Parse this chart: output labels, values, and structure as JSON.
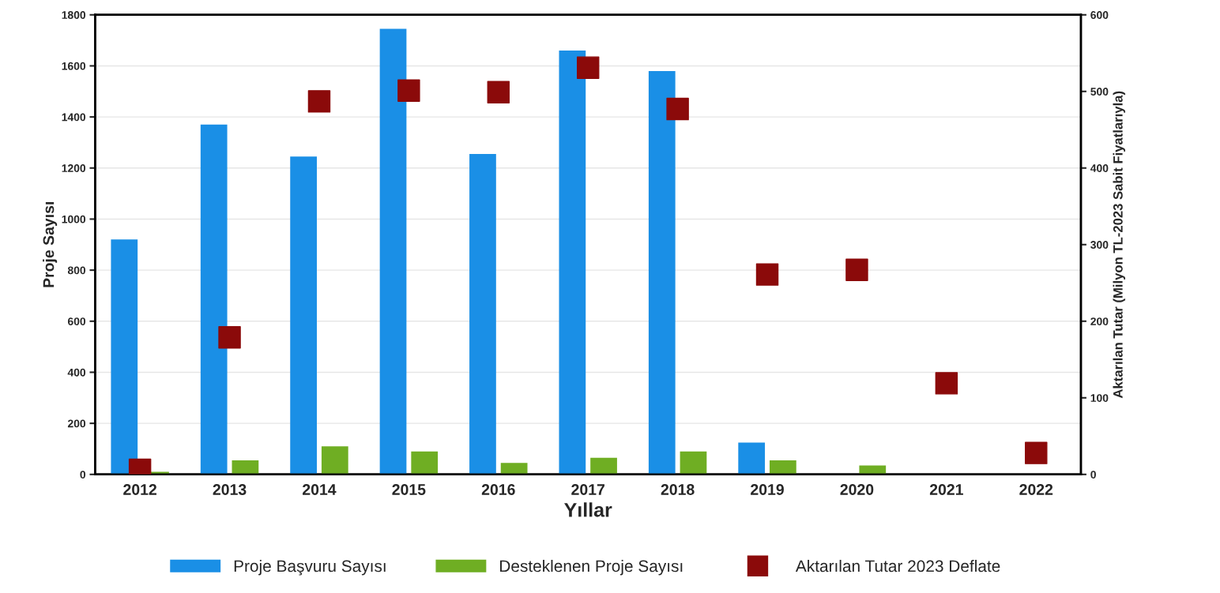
{
  "chart_data": {
    "type": "bar",
    "xlabel": "Yıllar",
    "ylabel": "Proje Sayısı",
    "y2label": "Aktarılan Tutar (Milyon TL-2023 Sabit Fiyatlarıyla)",
    "categories": [
      "2012",
      "2013",
      "2014",
      "2015",
      "2016",
      "2017",
      "2018",
      "2019",
      "2020",
      "2021",
      "2022"
    ],
    "series": [
      {
        "name": "Proje Başvuru Sayısı",
        "color": "#1a8fe6",
        "values": [
          920,
          1370,
          1245,
          1745,
          1255,
          1660,
          1580,
          125,
          null,
          null,
          null
        ]
      },
      {
        "name": "Desteklenen Proje Sayısı",
        "color": "#6fae23",
        "values": [
          10,
          55,
          110,
          90,
          45,
          65,
          90,
          55,
          35,
          null,
          null
        ]
      },
      {
        "name": "Aktarılan Tutar 2023 Deflate",
        "type": "scatter",
        "axis": "y2",
        "marker": "square",
        "color": "#8b0a0a",
        "values": [
          6,
          179,
          487,
          501,
          499,
          531,
          477,
          261,
          267,
          119,
          28
        ]
      }
    ],
    "ylim": [
      0,
      1800
    ],
    "yticks": [
      0,
      200,
      400,
      600,
      800,
      1000,
      1200,
      1400,
      1600,
      1800
    ],
    "y2lim": [
      0,
      600
    ],
    "y2ticks": [
      0,
      100,
      200,
      300,
      400,
      500,
      600
    ],
    "grid": "y",
    "legend": "bottom"
  }
}
